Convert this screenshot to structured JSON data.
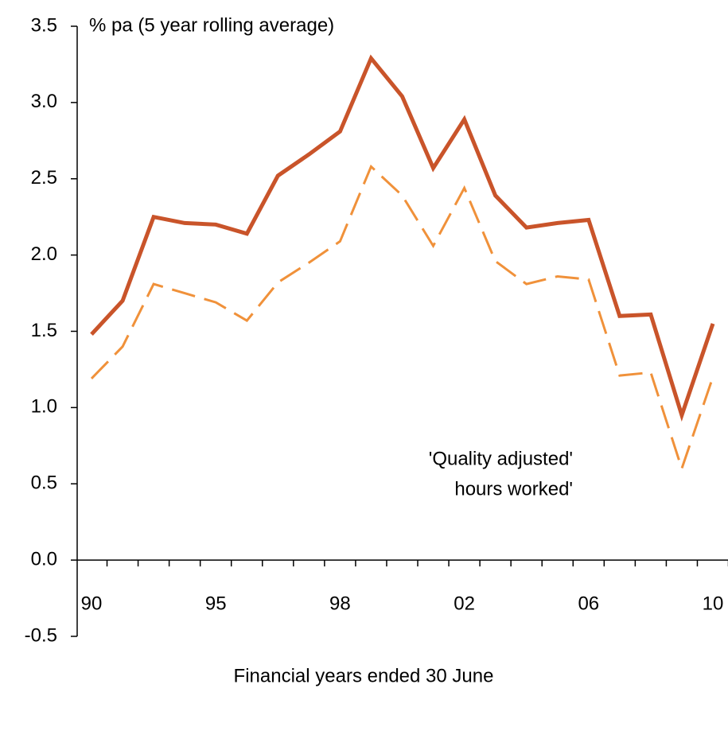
{
  "chart_data": {
    "type": "line",
    "ylabel": "% pa (5 year rolling average)",
    "xlabel": "Financial years ended 30 June",
    "annotations": [
      "'Quality adjusted'",
      "hours worked'"
    ],
    "annotation_color": "#d4582a",
    "categories": [
      "90",
      null,
      null,
      null,
      "95",
      null,
      null,
      null,
      "98",
      null,
      null,
      null,
      "02",
      null,
      null,
      null,
      "06",
      null,
      null,
      null,
      "10"
    ],
    "series": [
      {
        "color": "#c9542a",
        "dashed": false,
        "values": [
          1.48,
          1.7,
          2.25,
          2.21,
          2.2,
          2.14,
          2.52,
          2.66,
          2.81,
          3.29,
          3.04,
          2.57,
          2.89,
          2.39,
          2.18,
          2.21,
          2.23,
          1.6,
          1.61,
          0.95,
          1.55
        ]
      },
      {
        "color": "#f0913a",
        "dashed": true,
        "values": [
          1.19,
          1.4,
          1.81,
          1.75,
          1.69,
          1.57,
          1.82,
          1.95,
          2.09,
          2.58,
          2.39,
          2.06,
          2.44,
          1.96,
          1.81,
          1.86,
          1.84,
          1.21,
          1.23,
          0.6,
          1.2
        ]
      }
    ],
    "ylim": [
      -0.5,
      3.5
    ],
    "yticks": [
      -0.5,
      {
        "value": 0,
        "label": "0.0"
      },
      0.5,
      {
        "value": 1,
        "label": "1.0"
      },
      1.5,
      {
        "value": 2,
        "label": "2.0"
      },
      2.5,
      {
        "value": 3,
        "label": "3.0"
      },
      3.5
    ],
    "grid": false
  }
}
